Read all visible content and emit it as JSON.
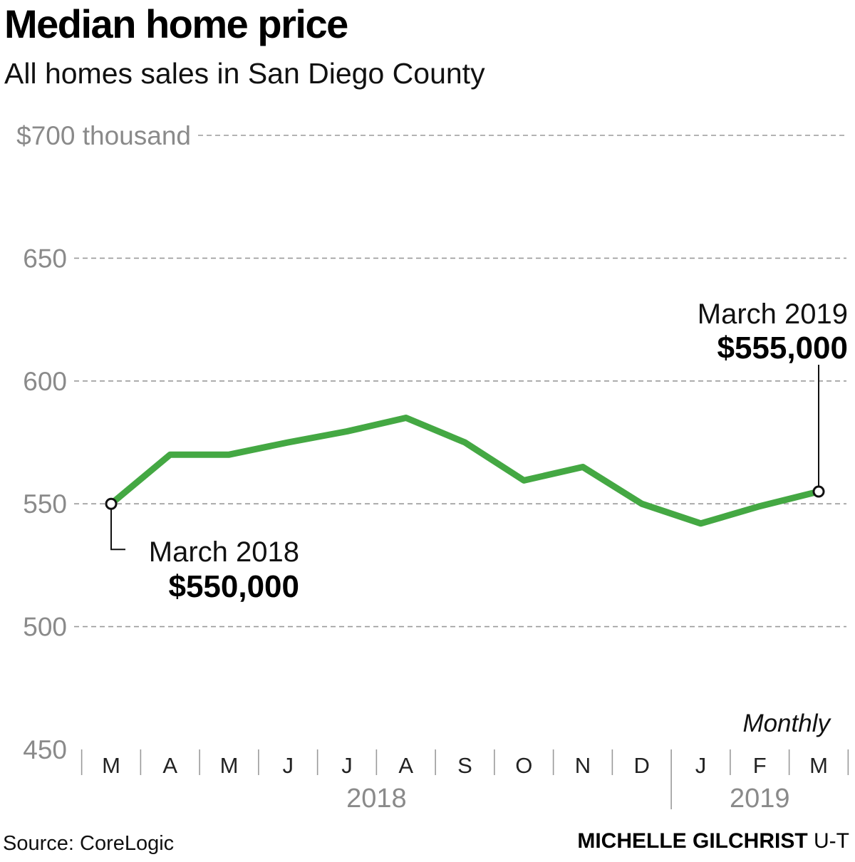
{
  "header": {
    "title": "Median home price",
    "subtitle": "All homes sales in San Diego County"
  },
  "footer": {
    "source": "Source: CoreLogic",
    "credit_name": "MICHELLE GILCHRIST",
    "credit_org": "U-T"
  },
  "colors": {
    "line": "#44a843",
    "grid": "#9a9a9a",
    "tick_text": "#8a8a8a",
    "text": "#000000"
  },
  "chart_data": {
    "type": "line",
    "title": "Median home price",
    "subtitle": "All homes sales in San Diego County",
    "frequency_label": "Monthly",
    "categories": [
      "M",
      "A",
      "M",
      "J",
      "J",
      "A",
      "S",
      "O",
      "N",
      "D",
      "J",
      "F",
      "M"
    ],
    "year_labels": [
      {
        "label": "2018",
        "start_index": 0,
        "end_index": 9
      },
      {
        "label": "2019",
        "start_index": 10,
        "end_index": 12
      }
    ],
    "series": [
      {
        "values": [
          550,
          570,
          570,
          575,
          579.5,
          585,
          575,
          559.5,
          565,
          550,
          542,
          549,
          555
        ]
      }
    ],
    "y_ticks": [
      {
        "value": 700,
        "label": "$700 thousand"
      },
      {
        "value": 650,
        "label": "650"
      },
      {
        "value": 600,
        "label": "600"
      },
      {
        "value": 550,
        "label": "550"
      },
      {
        "value": 500,
        "label": "500"
      },
      {
        "value": 450,
        "label": "450"
      }
    ],
    "ylim": [
      450,
      700
    ],
    "grid": true,
    "annotations": [
      {
        "index": 0,
        "label": "March 2018",
        "value_label": "$550,000"
      },
      {
        "index": 12,
        "label": "March 2019",
        "value_label": "$555,000"
      }
    ]
  }
}
